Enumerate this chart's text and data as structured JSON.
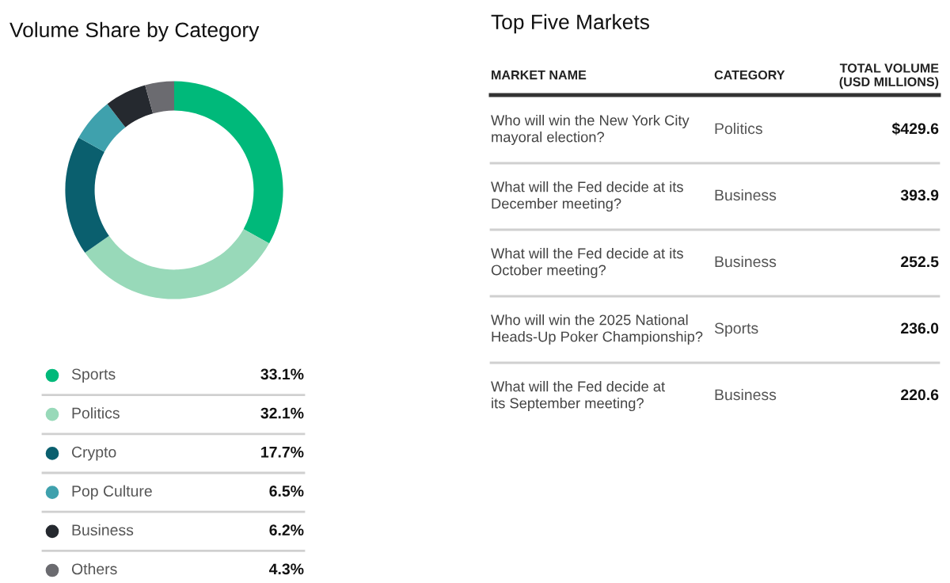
{
  "chart_data": [
    {
      "type": "donut",
      "title": "Volume Share by Category",
      "legend": "bottom",
      "categories": [
        "Sports",
        "Politics",
        "Crypto",
        "Pop Culture",
        "Business",
        "Others"
      ],
      "values": [
        33.1,
        32.1,
        17.7,
        6.5,
        6.2,
        4.3
      ],
      "value_labels": [
        "33.1%",
        "32.1%",
        "17.7%",
        "6.5%",
        "6.2%",
        "4.3%"
      ],
      "colors": [
        "#00b97a",
        "#98d9b9",
        "#0a5f6e",
        "#3fa1ad",
        "#25292f",
        "#6b6b70"
      ]
    },
    {
      "type": "other",
      "title": "Top Five Markets",
      "annotations": [
        "MARKET NAME",
        "CATEGORY",
        "TOTAL VOLUME\n(USD MILLIONS)"
      ],
      "categories": [
        "Who will win the New York City\nmayoral election?",
        "What will the Fed decide at its\nDecember meeting?",
        "What will the Fed decide at its\nOctober meeting?",
        "Who will win the 2025 National\nHeads-Up Poker Championship?",
        "What will the Fed decide at\nits September meeting?"
      ],
      "y2_categories": [
        "Politics",
        "Business",
        "Business",
        "Sports",
        "Business"
      ],
      "value_labels": [
        "$429.6",
        "393.9",
        "252.5",
        "236.0",
        "220.6"
      ]
    }
  ]
}
